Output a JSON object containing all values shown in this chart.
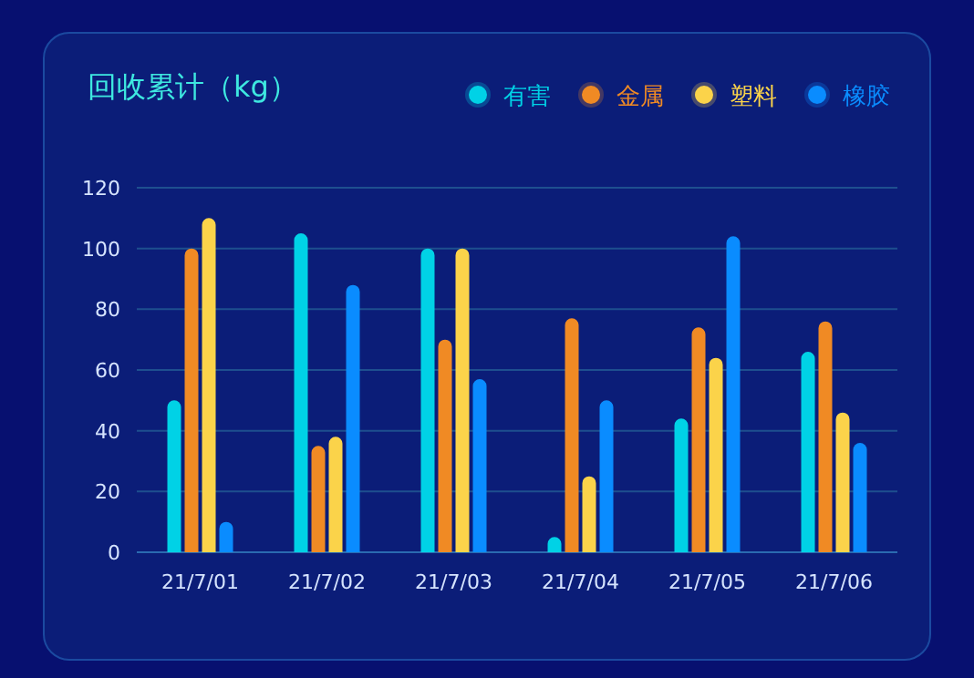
{
  "chart_data": {
    "type": "bar",
    "title": "回收累计（kg）",
    "categories": [
      "21/7/01",
      "21/7/02",
      "21/7/03",
      "21/7/04",
      "21/7/05",
      "21/7/06"
    ],
    "series": [
      {
        "name": "有害",
        "color": "#00d2e6",
        "values": [
          50,
          105,
          100,
          5,
          44,
          66
        ]
      },
      {
        "name": "金属",
        "color": "#f08a24",
        "values": [
          100,
          35,
          70,
          77,
          74,
          76
        ]
      },
      {
        "name": "塑料",
        "color": "#fbd34a",
        "values": [
          110,
          38,
          100,
          25,
          64,
          46
        ]
      },
      {
        "name": "橡胶",
        "color": "#0a8cff",
        "values": [
          10,
          88,
          57,
          50,
          104,
          36
        ]
      }
    ],
    "ylim": [
      0,
      120
    ],
    "yticks": [
      0,
      20,
      40,
      60,
      80,
      100,
      120
    ],
    "grid": "y",
    "legend": "top right"
  }
}
